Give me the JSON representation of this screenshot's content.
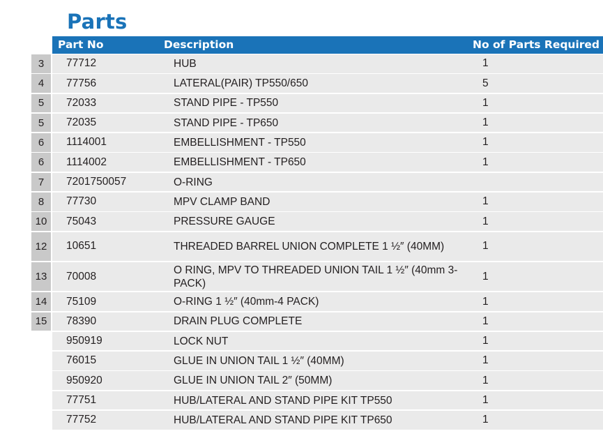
{
  "title": "Parts",
  "headers": {
    "part_no": "Part No",
    "description": "Description",
    "qty": "No of Parts Required"
  },
  "rows": [
    {
      "num": "3",
      "part": "77712",
      "desc": "HUB",
      "qty": "1"
    },
    {
      "num": "4",
      "part": "77756",
      "desc": "LATERAL(PAIR) TP550/650",
      "qty": "5"
    },
    {
      "num": "5",
      "part": "72033",
      "desc": "STAND PIPE - TP550",
      "qty": "1"
    },
    {
      "num": "5",
      "part": "72035",
      "desc": "STAND PIPE - TP650",
      "qty": "1"
    },
    {
      "num": "6",
      "part": "1114001",
      "desc": "EMBELLISHMENT - TP550",
      "qty": "1"
    },
    {
      "num": "6",
      "part": "1114002",
      "desc": "EMBELLISHMENT - TP650",
      "qty": "1"
    },
    {
      "num": "7",
      "part": "7201750057",
      "desc": "O-RING",
      "qty": ""
    },
    {
      "num": "8",
      "part": "77730",
      "desc": "MPV CLAMP BAND",
      "qty": "1"
    },
    {
      "num": "10",
      "part": "75043",
      "desc": "PRESSURE GAUGE",
      "qty": "1"
    },
    {
      "num": "12",
      "part": "10651",
      "desc": "THREADED BARREL UNION COMPLETE 1 ½″ (40MM)",
      "qty": "1"
    },
    {
      "num": "13",
      "part": "70008",
      "desc": "O RING, MPV TO THREADED UNION TAIL 1 ½″ (40mm 3-PACK)",
      "qty": "1"
    },
    {
      "num": "14",
      "part": "75109",
      "desc": "O-RING 1 ½″ (40mm-4 PACK)",
      "qty": "1"
    },
    {
      "num": "15",
      "part": "78390",
      "desc": "DRAIN PLUG COMPLETE",
      "qty": "1"
    },
    {
      "num": "",
      "part": "950919",
      "desc": "LOCK NUT",
      "qty": "1"
    },
    {
      "num": "",
      "part": "76015",
      "desc": "GLUE IN UNION TAIL 1 ½″ (40MM)",
      "qty": "1"
    },
    {
      "num": "",
      "part": "950920",
      "desc": "GLUE IN UNION TAIL 2″ (50MM)",
      "qty": "1"
    },
    {
      "num": "",
      "part": "77751",
      "desc": "HUB/LATERAL AND STAND PIPE KIT TP550",
      "qty": "1"
    },
    {
      "num": "",
      "part": "77752",
      "desc": "HUB/LATERAL AND STAND PIPE KIT TP650",
      "qty": "1"
    }
  ]
}
